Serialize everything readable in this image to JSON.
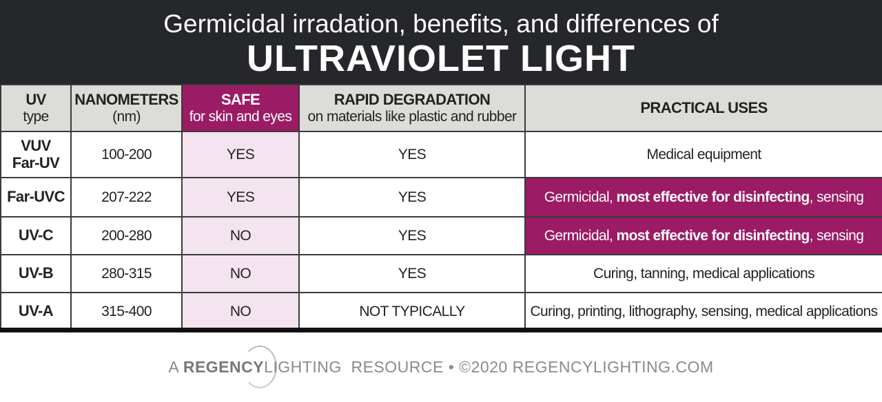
{
  "header": {
    "subtitle": "Germicidal irradation, benefits, and differences of",
    "title": "ULTRAVIOLET LIGHT"
  },
  "columns": [
    {
      "title": "UV",
      "sub": "type"
    },
    {
      "title": "NANOMETERS",
      "sub": "(nm)"
    },
    {
      "title": "SAFE",
      "sub": "for skin and eyes"
    },
    {
      "title": "RAPID DEGRADATION",
      "sub": "on materials like plastic and rubber"
    },
    {
      "title": "PRACTICAL USES",
      "sub": ""
    }
  ],
  "rows": [
    {
      "type1": "VUV",
      "type2": "Far-UV",
      "nm": "100-200",
      "safe": "YES",
      "degradation": "YES",
      "uses": "Medical equipment"
    },
    {
      "type1": "Far-UVC",
      "type2": "",
      "nm": "207-222",
      "safe": "YES",
      "degradation": "YES",
      "uses_a": "Germicidal, ",
      "uses_b": "most effective for disinfecting",
      "uses_c": ", sensing"
    },
    {
      "type1": "UV-C",
      "type2": "",
      "nm": "200-280",
      "safe": "NO",
      "degradation": "YES",
      "uses_a": "Germicidal, ",
      "uses_b": "most effective for disinfecting",
      "uses_c": ", sensing"
    },
    {
      "type1": "UV-B",
      "type2": "",
      "nm": "280-315",
      "safe": "NO",
      "degradation": "YES",
      "uses": "Curing, tanning, medical applications"
    },
    {
      "type1": "UV-A",
      "type2": "",
      "nm": "315-400",
      "safe": "NO",
      "degradation": "NOT TYPICALLY",
      "uses": "Curing, printing, lithography, sensing, medical applications"
    }
  ],
  "footer": {
    "prefix": "A ",
    "brand_bold": "REGENCY",
    "brand_light": "LIGHTING",
    "rest": "  RESOURCE • ©2020 REGENCYLIGHTING.COM"
  },
  "colors": {
    "accent": "#9b1b64",
    "safe_cell": "#f3e4ef",
    "header_bg": "#25272a",
    "col_header": "#dcdcd9"
  }
}
